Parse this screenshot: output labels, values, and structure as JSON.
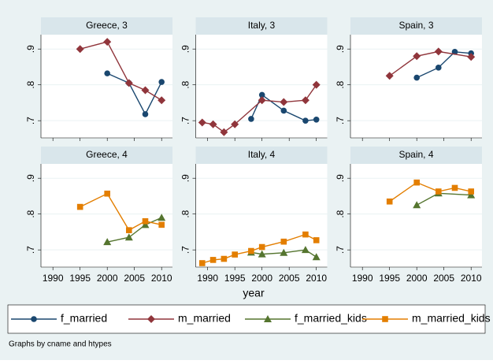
{
  "chart_data": {
    "type": "line",
    "xlabel": "year",
    "note": "Graphs by cname and htypes",
    "xlim": [
      1987.8,
      2012
    ],
    "xticks": [
      1990,
      1995,
      2000,
      2005,
      2010
    ],
    "ylim": [
      0.652,
      0.94
    ],
    "yticks": [
      {
        "value": 0.7,
        "label": ".7"
      },
      {
        "value": 0.8,
        "label": ".8"
      },
      {
        "value": 0.9,
        "label": ".9"
      }
    ],
    "grid": true,
    "legend": [
      {
        "name": "f_married",
        "color": "#1a476f",
        "marker": "circle"
      },
      {
        "name": "m_married",
        "color": "#90353b",
        "marker": "diamond"
      },
      {
        "name": "f_married_kids",
        "color": "#55752f",
        "marker": "triangle"
      },
      {
        "name": "m_married_kids",
        "color": "#e37e00",
        "marker": "square"
      }
    ],
    "panels": [
      {
        "title": "Greece, 3",
        "series": [
          {
            "name": "f_married",
            "x": [
              2000,
              2004,
              2007,
              2010
            ],
            "values": [
              0.832,
              0.805,
              0.718,
              0.808
            ]
          },
          {
            "name": "m_married",
            "x": [
              1995,
              2000,
              2004,
              2007,
              2010
            ],
            "values": [
              0.9,
              0.92,
              0.805,
              0.785,
              0.757
            ]
          }
        ]
      },
      {
        "title": "Italy, 3",
        "series": [
          {
            "name": "f_married",
            "x": [
              1998,
              2000,
              2004,
              2008,
              2010
            ],
            "values": [
              0.705,
              0.772,
              0.728,
              0.7,
              0.703
            ]
          },
          {
            "name": "m_married",
            "x": [
              1989,
              1991,
              1993,
              1995,
              2000,
              2004,
              2008,
              2010
            ],
            "values": [
              0.695,
              0.69,
              0.668,
              0.69,
              0.757,
              0.752,
              0.757,
              0.8
            ]
          }
        ]
      },
      {
        "title": "Spain, 3",
        "series": [
          {
            "name": "f_married",
            "x": [
              2000,
              2004,
              2007,
              2010
            ],
            "values": [
              0.82,
              0.848,
              0.892,
              0.888
            ]
          },
          {
            "name": "m_married",
            "x": [
              1995,
              2000,
              2004,
              2010
            ],
            "values": [
              0.825,
              0.88,
              0.893,
              0.878
            ]
          }
        ]
      },
      {
        "title": "Greece, 4",
        "series": [
          {
            "name": "f_married_kids",
            "x": [
              2000,
              2004,
              2007,
              2010
            ],
            "values": [
              0.722,
              0.735,
              0.77,
              0.79
            ]
          },
          {
            "name": "m_married_kids",
            "x": [
              1995,
              2000,
              2004,
              2007,
              2010
            ],
            "values": [
              0.82,
              0.857,
              0.755,
              0.78,
              0.77
            ]
          }
        ]
      },
      {
        "title": "Italy, 4",
        "series": [
          {
            "name": "f_married_kids",
            "x": [
              1998,
              2000,
              2004,
              2008,
              2010
            ],
            "values": [
              0.693,
              0.688,
              0.692,
              0.7,
              0.68
            ]
          },
          {
            "name": "m_married_kids",
            "x": [
              1989,
              1991,
              1993,
              1995,
              1998,
              2000,
              2004,
              2008,
              2010
            ],
            "values": [
              0.663,
              0.672,
              0.675,
              0.687,
              0.697,
              0.708,
              0.723,
              0.743,
              0.727
            ]
          }
        ]
      },
      {
        "title": "Spain, 4",
        "series": [
          {
            "name": "f_married_kids",
            "x": [
              2000,
              2004,
              2010
            ],
            "values": [
              0.825,
              0.858,
              0.853
            ]
          },
          {
            "name": "m_married_kids",
            "x": [
              1995,
              2000,
              2004,
              2007,
              2010
            ],
            "values": [
              0.835,
              0.888,
              0.863,
              0.873,
              0.863
            ]
          }
        ]
      }
    ]
  }
}
